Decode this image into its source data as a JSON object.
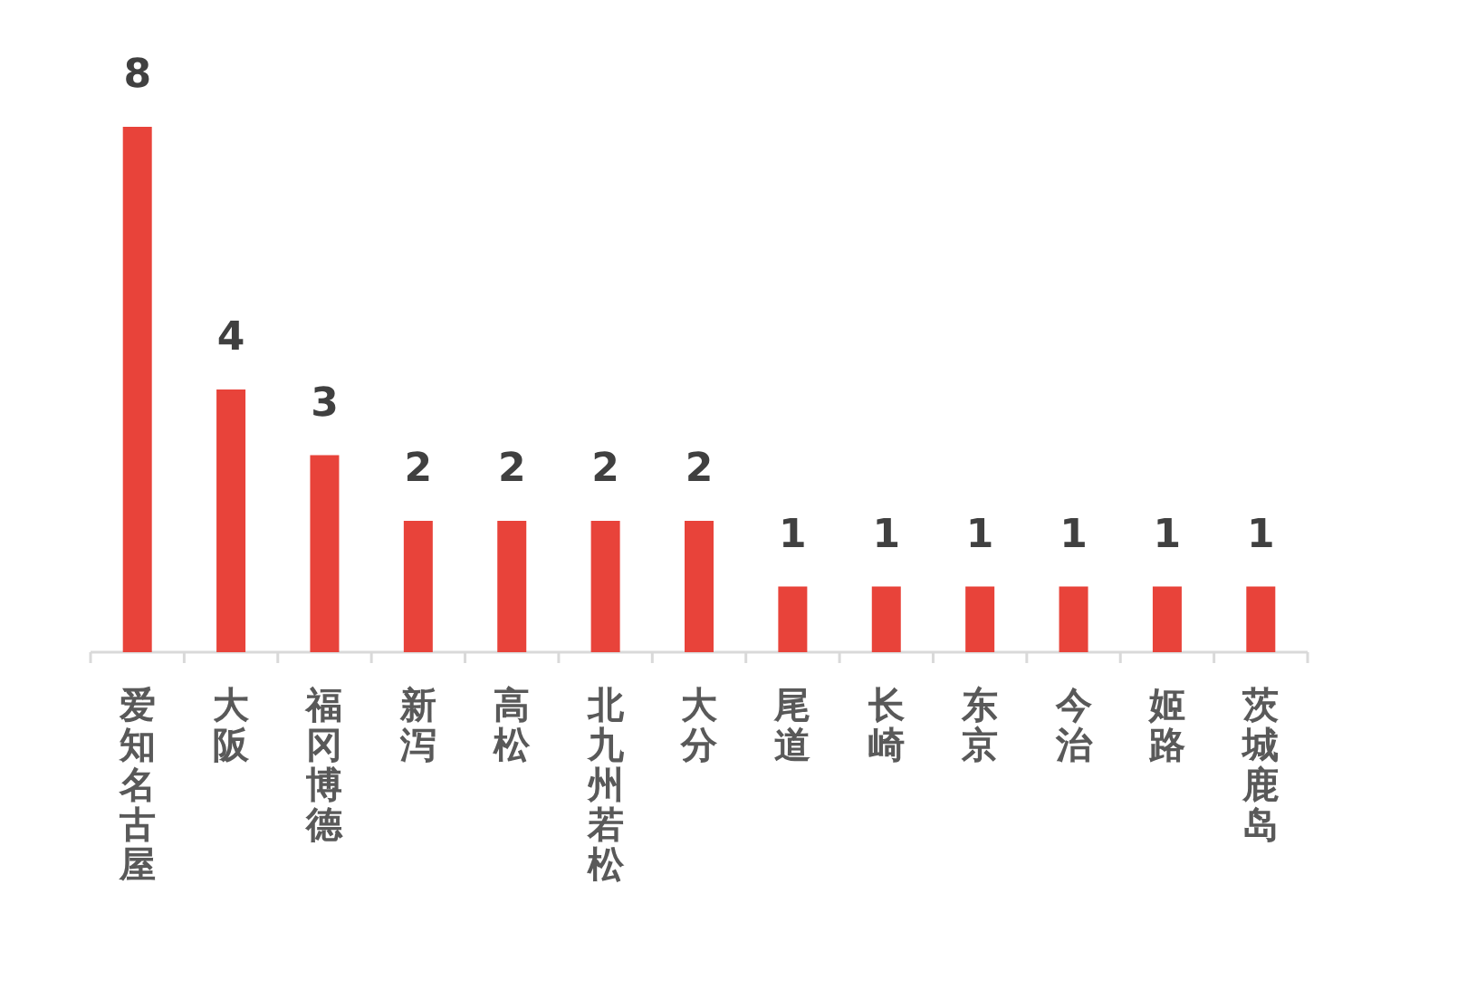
{
  "chart_data": {
    "type": "bar",
    "categories": [
      "爱知名古屋",
      "大阪",
      "福冈博德",
      "新泻",
      "高松",
      "北九州若松",
      "大分",
      "尾道",
      "长崎",
      "东京",
      "今治",
      "姬路",
      "茨城鹿岛"
    ],
    "values": [
      8,
      4,
      3,
      2,
      2,
      2,
      2,
      1,
      1,
      1,
      1,
      1,
      1
    ],
    "color": "#e8433a",
    "data_labels": true
  }
}
